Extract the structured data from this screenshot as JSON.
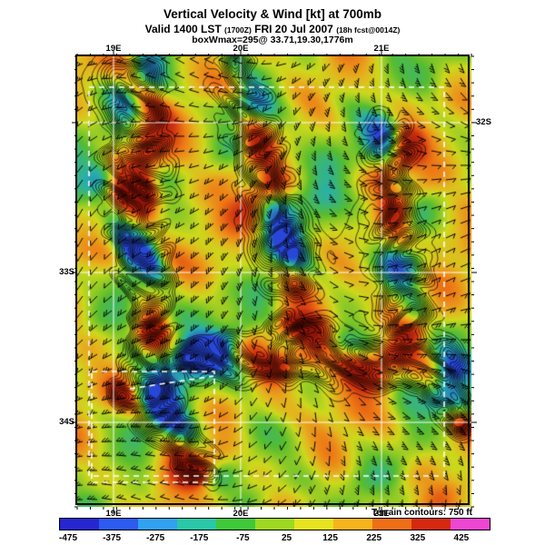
{
  "header": {
    "title": "Vertical Velocity & Wind [kt] at 700mb",
    "valid_prefix": "Valid 1400 LST",
    "valid_zulu": "(1700Z)",
    "valid_date": "FRI 20 Jul 2007",
    "fcst_note": "(18h fcst@0014Z)",
    "box_info": "boxWmax=295@ 33.71,19.30,1776m"
  },
  "axes": {
    "top": [
      "19E",
      "20E",
      "21E"
    ],
    "bottom": [
      "19E",
      "20E",
      "21E"
    ],
    "left": [
      "33S",
      "34S"
    ],
    "right": [
      "32S"
    ]
  },
  "colorbar": {
    "note": "Terrain contours: 750 ft",
    "tick_labels": [
      "-475",
      "-375",
      "-275",
      "-175",
      "-75",
      "25",
      "125",
      "225",
      "325",
      "425"
    ],
    "segment_colors": [
      "#2626d2",
      "#2b5bf0",
      "#30a2f0",
      "#28c8a8",
      "#3fc83a",
      "#9fd820",
      "#e6e41e",
      "#f6b41c",
      "#ee6f16",
      "#d5280f",
      "#ef46d2"
    ]
  },
  "map": {
    "base_color": "#ccd81c",
    "contour_color": "#000000",
    "grid_color": "#ffffff"
  }
}
